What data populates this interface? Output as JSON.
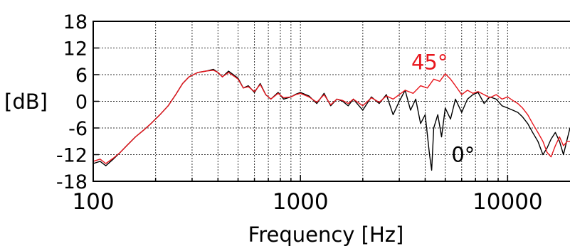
{
  "chart_data": {
    "type": "line",
    "title": "",
    "xlabel": "Frequency [Hz]",
    "ylabel": "[dB]",
    "x_scale": "log",
    "xlim": [
      100,
      20000
    ],
    "ylim": [
      -18,
      18
    ],
    "x_ticks": [
      {
        "value": 100,
        "label": "100"
      },
      {
        "value": 1000,
        "label": "1000"
      },
      {
        "value": 10000,
        "label": "10000"
      }
    ],
    "y_ticks": [
      {
        "value": 18,
        "label": "18"
      },
      {
        "value": 12,
        "label": "12"
      },
      {
        "value": 6,
        "label": "6"
      },
      {
        "value": 0,
        "label": "0"
      },
      {
        "value": -6,
        "label": "-6"
      },
      {
        "value": -12,
        "label": "-12"
      },
      {
        "value": -18,
        "label": "-18"
      }
    ],
    "grid": true,
    "series": [
      {
        "name": "0°",
        "color": "#000000",
        "x": [
          100,
          108,
          115,
          125,
          135,
          145,
          160,
          175,
          190,
          210,
          230,
          250,
          270,
          290,
          320,
          350,
          380,
          400,
          420,
          450,
          480,
          500,
          530,
          560,
          600,
          640,
          680,
          720,
          780,
          830,
          900,
          950,
          1000,
          1100,
          1200,
          1300,
          1400,
          1500,
          1600,
          1700,
          1800,
          2000,
          2200,
          2400,
          2600,
          2800,
          3000,
          3200,
          3400,
          3600,
          3800,
          4000,
          4200,
          4300,
          4400,
          4600,
          4800,
          5000,
          5300,
          5600,
          6000,
          6400,
          6800,
          7200,
          7700,
          8200,
          8800,
          9400,
          10000,
          10600,
          11200,
          11800,
          12500,
          13200,
          14000,
          14800,
          15500,
          16200,
          17000,
          17800,
          18600,
          19400,
          20000
        ],
        "y": [
          -14,
          -13.5,
          -14.5,
          -13,
          -11.5,
          -10,
          -8,
          -6.5,
          -5,
          -3,
          -1,
          1.5,
          4,
          5.5,
          6.5,
          6.8,
          7.2,
          6.5,
          5.5,
          6.8,
          5.8,
          5.2,
          3,
          3.5,
          2,
          4,
          1.5,
          0.5,
          2,
          0.5,
          1,
          1.6,
          2,
          1.2,
          -0.5,
          1.8,
          -1,
          0.5,
          0,
          -1,
          0.5,
          -2,
          1,
          -0.5,
          1.5,
          -3,
          0,
          2.5,
          -2,
          0.5,
          -5,
          -3,
          -12,
          -15.5,
          -6,
          -3,
          -8,
          -1.5,
          -4,
          0.5,
          -2.5,
          0.5,
          1.5,
          2,
          -0.5,
          1,
          0.5,
          -1,
          -1.5,
          -2,
          -2.5,
          -3.5,
          -5,
          -7,
          -9,
          -12,
          -10.5,
          -8.5,
          -7,
          -9,
          -12,
          -8.5,
          -6
        ]
      },
      {
        "name": "45°",
        "color": "#e8161d",
        "x": [
          100,
          108,
          115,
          125,
          135,
          145,
          160,
          175,
          190,
          210,
          230,
          250,
          270,
          290,
          320,
          350,
          380,
          400,
          420,
          450,
          480,
          500,
          530,
          560,
          600,
          640,
          680,
          720,
          780,
          830,
          900,
          950,
          1000,
          1100,
          1200,
          1300,
          1400,
          1500,
          1600,
          1700,
          1800,
          2000,
          2200,
          2400,
          2600,
          2800,
          3000,
          3200,
          3500,
          3800,
          4100,
          4400,
          4700,
          5000,
          5300,
          5600,
          6000,
          6400,
          6800,
          7200,
          7700,
          8200,
          8800,
          9400,
          10000,
          10600,
          11200,
          11800,
          12500,
          13200,
          14000,
          14800,
          15500,
          16200,
          17000,
          17800,
          18600,
          19400,
          20000
        ],
        "y": [
          -13.5,
          -13,
          -14,
          -12.8,
          -11.5,
          -10,
          -8,
          -6.5,
          -5,
          -3,
          -1,
          1.5,
          4,
          5.5,
          6.5,
          6.8,
          7,
          6.5,
          5.5,
          6.5,
          5.6,
          5,
          3,
          3.3,
          2.2,
          3.8,
          1.5,
          0.5,
          1.8,
          0.8,
          1,
          1.5,
          1.8,
          1,
          -0.2,
          1.5,
          -0.8,
          0.5,
          0.2,
          -0.5,
          0.5,
          -1,
          0.8,
          -0.2,
          1.2,
          0.5,
          1.5,
          2.5,
          1.8,
          3.5,
          3,
          5,
          4.5,
          6.2,
          5,
          3.5,
          1.5,
          2.5,
          1.8,
          2.2,
          1.5,
          0.8,
          1.5,
          0.5,
          1,
          0.2,
          -0.5,
          -1.5,
          -3,
          -5,
          -7,
          -9,
          -11.5,
          -12.5,
          -10,
          -8,
          -10,
          -9,
          -9
        ]
      }
    ],
    "annotations": [
      {
        "text": "45°",
        "series": "45°",
        "x": 4200,
        "y": 8.8,
        "color": "#e8161d"
      },
      {
        "text": "0°",
        "series": "0°",
        "x": 6100,
        "y": -12,
        "color": "#000000"
      }
    ]
  }
}
